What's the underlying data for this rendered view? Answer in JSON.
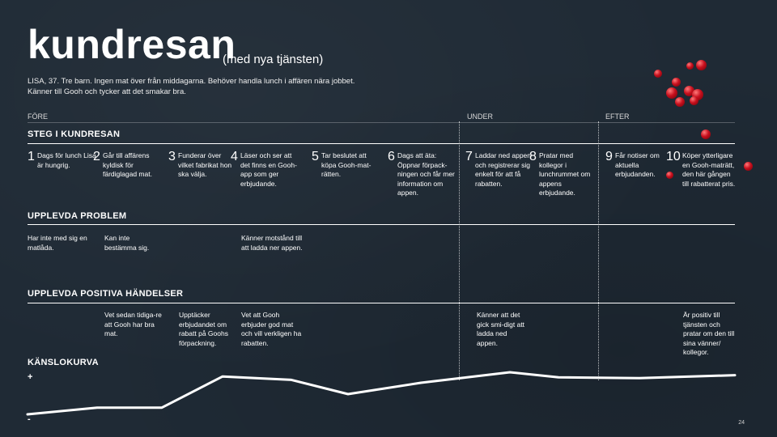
{
  "header": {
    "title": "kundresan",
    "subtitle": "(med nya tjänsten)",
    "intro_line1": "LISA, 37. Tre barn. Ingen mat över från middagarna. Behöver handla lunch i affären nära jobbet.",
    "intro_line2": "Känner till Gooh och tycker att det smakar bra."
  },
  "phases": [
    "FÖRE",
    "UNDER",
    "EFTER"
  ],
  "sections": {
    "steps": "STEG I KUNDRESAN",
    "problems": "UPPLEVDA PROBLEM",
    "positives": "UPPLEVDA POSITIVA HÄNDELSER",
    "curve": "KÄNSLOKURVA"
  },
  "steps": [
    {
      "num": "1",
      "text": "Dags för lunch Lisa är hungrig."
    },
    {
      "num": "2",
      "text": "Går till affärens kyldisk för färdiglagad mat."
    },
    {
      "num": "3",
      "text": "Funderar över vilket fabrikat hon ska välja."
    },
    {
      "num": "4",
      "text": "Läser och ser att det finns en Gooh-app som ger erbjudande."
    },
    {
      "num": "5",
      "text": "Tar beslutet att köpa Gooh-mat-rätten."
    },
    {
      "num": "6",
      "text": "Dags att äta: Öppnar förpack-ningen och får mer information om appen."
    },
    {
      "num": "7",
      "text": "Laddar ned appen och registrerar sig enkelt för att få rabatten."
    },
    {
      "num": "8",
      "text": "Pratar med kollegor i lunchrummet om appens erbjudande."
    },
    {
      "num": "9",
      "text": "Får notiser om aktuella erbjudanden."
    },
    {
      "num": "10",
      "text": "Köper ytterligare en Gooh-maträtt, den här gången till rabatterat pris."
    }
  ],
  "problems": [
    "Har inte med sig en matlåda.",
    "Kan inte bestämma sig.",
    "Känner motstånd till att ladda ner appen."
  ],
  "positives": [
    "Vet sedan tidiga-re att Gooh har bra mat.",
    "Upptäcker erbjudandet om rabatt på Goohs förpackning.",
    "Vet att Gooh erbjuder god mat och vill verkligen ha rabatten.",
    "Känner att det gick smi-digt att ladda ned appen.",
    "Är positiv till tjänsten och pratar om den till sina vänner/ kollegor."
  ],
  "curve": {
    "plus": "+",
    "minus": "-",
    "values": [
      0.0,
      0.16,
      0.16,
      0.9,
      0.82,
      0.48,
      0.75,
      1.0,
      0.88,
      0.86,
      0.93
    ],
    "color": "#ffffff"
  },
  "page_number": "24",
  "colors": {
    "background": "#1f2a35",
    "accent": "#c8101e"
  }
}
